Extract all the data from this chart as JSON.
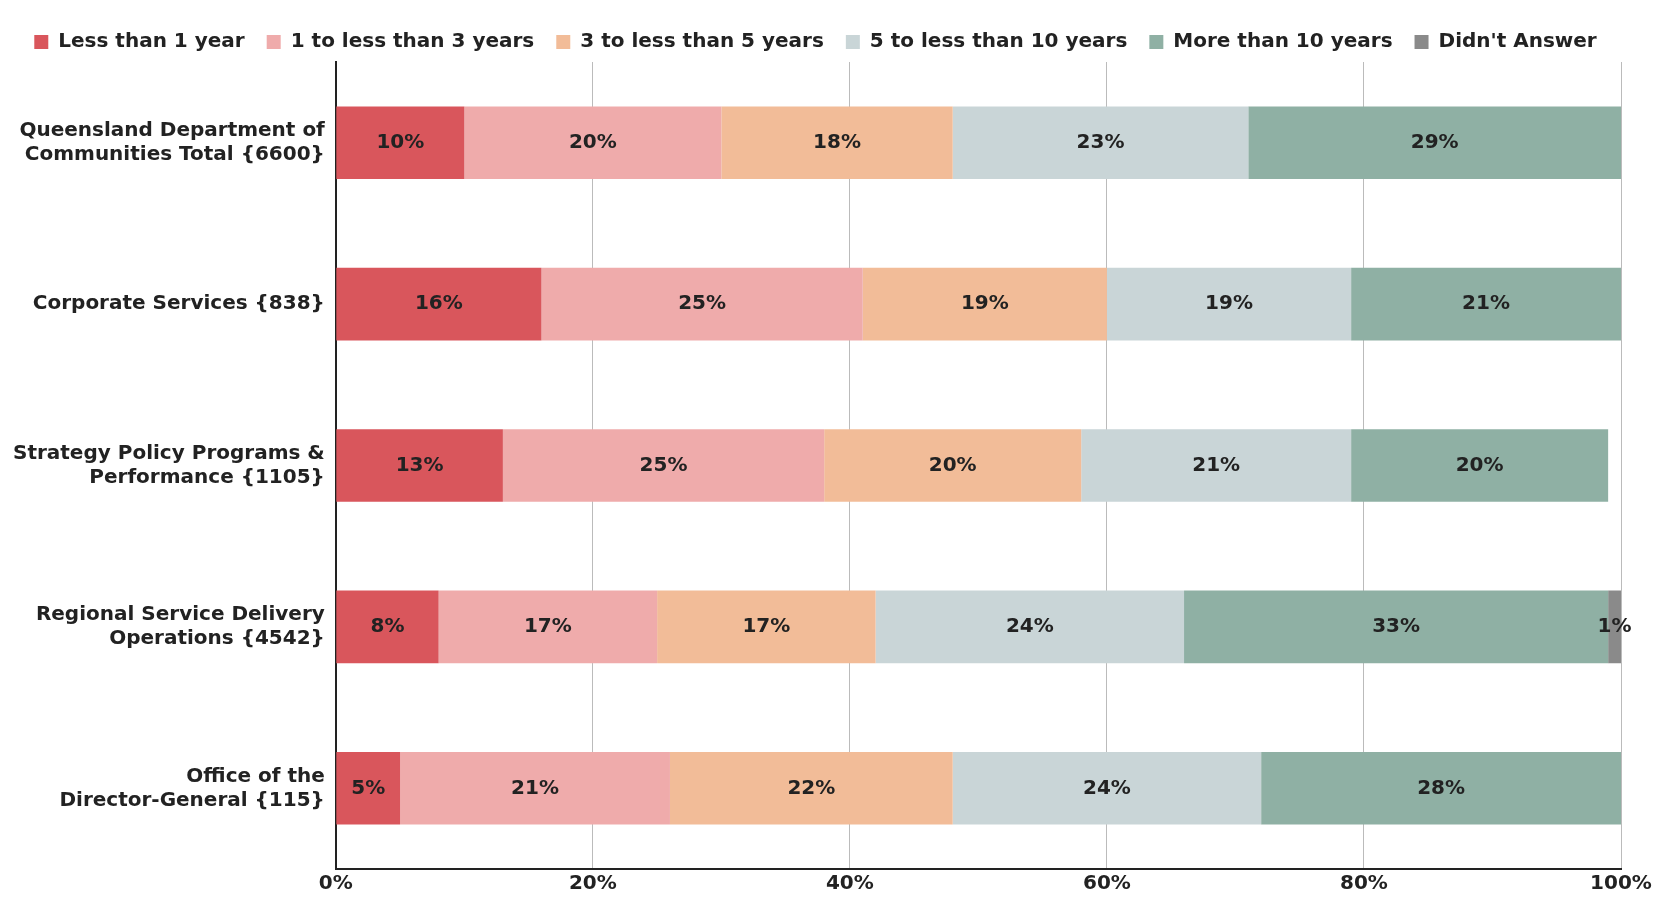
{
  "chart_data": {
    "type": "bar",
    "orientation": "horizontal",
    "stacked": true,
    "grid": "x",
    "legend": "top",
    "categories": [
      "Queensland Department of Communities Total {6600}",
      "Corporate Services {838}",
      "Strategy Policy Programs & Performance {1105}",
      "Regional Service Delivery Operations {4542}",
      "Office of the Director-General {115}"
    ],
    "series": [
      {
        "name": "Less than 1 year",
        "color": "#d9565c",
        "values": [
          10,
          16,
          13,
          8,
          5
        ],
        "value_labels": [
          "10%",
          "16%",
          "13%",
          "8%",
          "5%"
        ]
      },
      {
        "name": "1 to less than 3 years",
        "color": "#efabab",
        "values": [
          20,
          25,
          25,
          17,
          21
        ],
        "value_labels": [
          "20%",
          "25%",
          "25%",
          "17%",
          "21%"
        ]
      },
      {
        "name": "3 to less than 5 years",
        "color": "#f2bc98",
        "values": [
          18,
          19,
          20,
          17,
          22
        ],
        "value_labels": [
          "18%",
          "19%",
          "20%",
          "17%",
          "22%"
        ]
      },
      {
        "name": "5 to less than 10 years",
        "color": "#c9d5d7",
        "values": [
          23,
          19,
          21,
          24,
          24
        ],
        "value_labels": [
          "23%",
          "19%",
          "21%",
          "24%",
          "24%"
        ]
      },
      {
        "name": "More than 10 years",
        "color": "#8fb0a4",
        "values": [
          29,
          21,
          20,
          33,
          28
        ],
        "value_labels": [
          "29%",
          "21%",
          "20%",
          "33%",
          "28%"
        ]
      },
      {
        "name": "Didn't Answer",
        "color": "#8a8a8a",
        "values": [
          null,
          null,
          null,
          1,
          null
        ],
        "value_labels": [
          null,
          null,
          null,
          "1%",
          null
        ]
      }
    ],
    "xlim": [
      0,
      100
    ],
    "xticks": [
      {
        "value": 0,
        "label": "0%"
      },
      {
        "value": 20,
        "label": "20%"
      },
      {
        "value": 40,
        "label": "40%"
      },
      {
        "value": 60,
        "label": "60%"
      },
      {
        "value": 80,
        "label": "80%"
      },
      {
        "value": 100,
        "label": "100%"
      }
    ]
  }
}
